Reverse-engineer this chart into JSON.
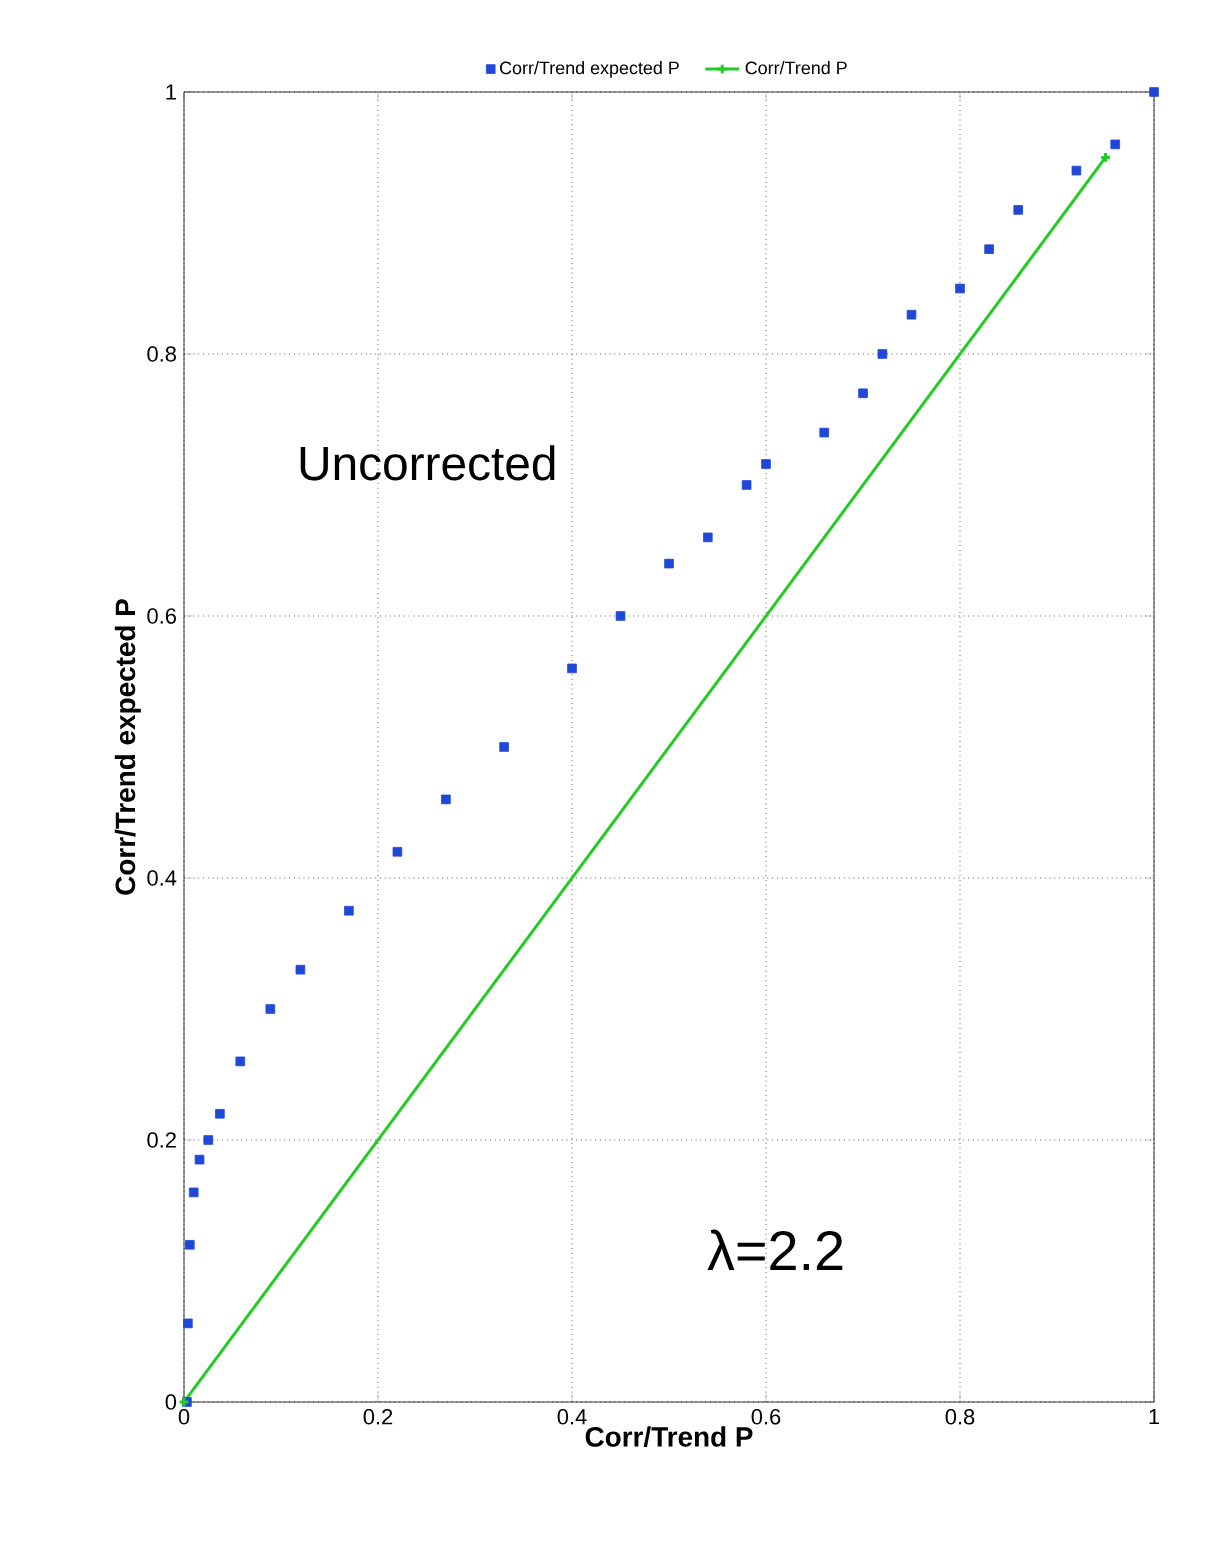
{
  "chart_data": {
    "type": "scatter",
    "xlabel": "Corr/Trend  P",
    "ylabel": "Corr/Trend  expected P",
    "xlim": [
      0,
      1
    ],
    "ylim": [
      0,
      1
    ],
    "xticks": [
      0,
      0.2,
      0.4,
      0.6,
      0.8,
      1
    ],
    "yticks": [
      0,
      0.2,
      0.4,
      0.6,
      0.8,
      1
    ],
    "grid": true,
    "legend": "top",
    "annotations": [
      "Uncorrected",
      "λ=2.2"
    ],
    "series": [
      {
        "name": "Corr/Trend  expected P",
        "color": "#2048d8",
        "marker": "square",
        "x": [
          0.003,
          0.004,
          0.006,
          0.01,
          0.016,
          0.025,
          0.037,
          0.058,
          0.089,
          0.12,
          0.17,
          0.22,
          0.27,
          0.33,
          0.4,
          0.45,
          0.5,
          0.54,
          0.58,
          0.6,
          0.66,
          0.7,
          0.72,
          0.75,
          0.8,
          0.83,
          0.86,
          0.92,
          0.96,
          1.0
        ],
        "values": [
          0.0,
          0.06,
          0.12,
          0.16,
          0.185,
          0.2,
          0.22,
          0.26,
          0.3,
          0.33,
          0.375,
          0.42,
          0.46,
          0.5,
          0.56,
          0.6,
          0.64,
          0.66,
          0.7,
          0.716,
          0.74,
          0.77,
          0.8,
          0.83,
          0.85,
          0.88,
          0.91,
          0.94,
          0.96,
          1.0
        ]
      },
      {
        "name": "Corr/Trend  P",
        "color": "#22cc22",
        "marker": "cross",
        "type": "line",
        "x": [
          0,
          0.95
        ],
        "values": [
          0,
          0.95
        ]
      }
    ]
  }
}
